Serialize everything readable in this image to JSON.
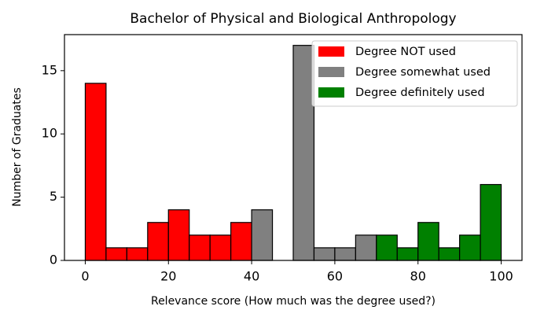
{
  "chart_data": {
    "type": "histogram",
    "title": "Bachelor of Physical and Biological Anthropology",
    "x_label": "Relevance score (How much was the degree used?)",
    "y_label": "Number of Graduates",
    "series": [
      {
        "name": "Degree NOT used",
        "color": "#ff0000",
        "bins": [
          0,
          5,
          10,
          15,
          20,
          25,
          30,
          35,
          40
        ],
        "values": [
          14,
          1,
          1,
          3,
          4,
          2,
          2,
          3
        ]
      },
      {
        "name": "Degree somewhat used",
        "color": "#808080",
        "bins": [
          40,
          45,
          50,
          55,
          60,
          65,
          70
        ],
        "values": [
          4,
          0,
          17,
          1,
          1,
          2
        ]
      },
      {
        "name": "Degree definitely used",
        "color": "#008000",
        "bins": [
          70,
          75,
          80,
          85,
          90,
          95,
          100
        ],
        "values": [
          2,
          1,
          3,
          1,
          2,
          6
        ]
      }
    ],
    "xlim": [
      -5,
      105
    ],
    "xticks": [
      0,
      20,
      40,
      60,
      80,
      100
    ],
    "ylim": [
      0,
      17.85
    ],
    "yticks": [
      0,
      5,
      10,
      15
    ],
    "legend": "upper right"
  }
}
